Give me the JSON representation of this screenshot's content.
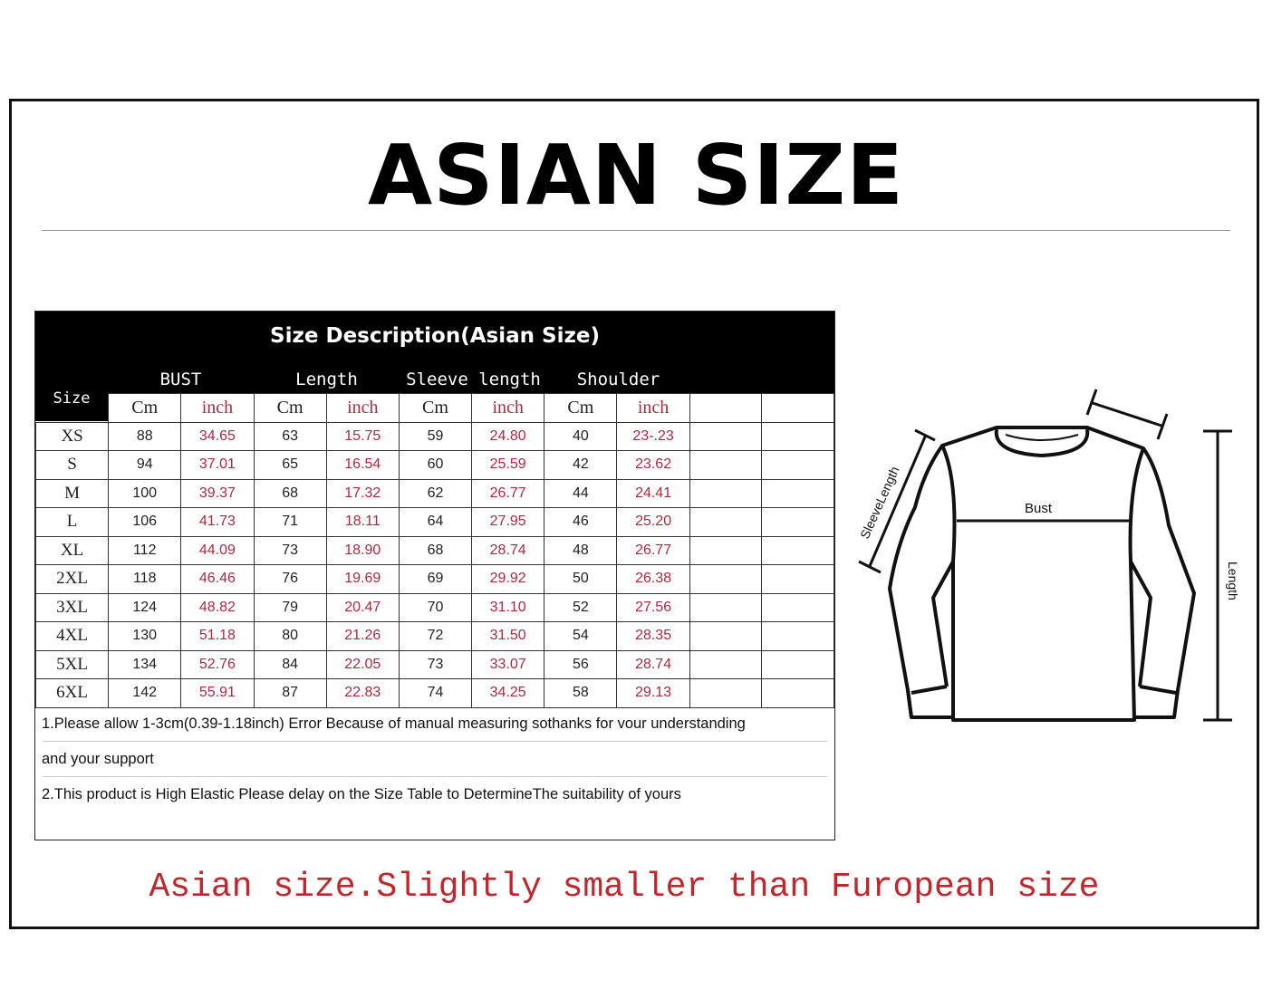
{
  "title": "ASIAN SIZE",
  "table": {
    "caption": "Size Description(Asian Size)",
    "size_header": "Size",
    "groups": [
      "BUST",
      "Length",
      "Sleeve length",
      "Shoulder"
    ],
    "units": [
      "Cm",
      "inch",
      "Cm",
      "inch",
      "Cm",
      "inch",
      "Cm",
      "inch"
    ],
    "rows": [
      [
        "XS",
        "88",
        "34.65",
        "63",
        "15.75",
        "59",
        "24.80",
        "40",
        "23-.23"
      ],
      [
        "S",
        "94",
        "37.01",
        "65",
        "16.54",
        "60",
        "25.59",
        "42",
        "23.62"
      ],
      [
        "M",
        "100",
        "39.37",
        "68",
        "17.32",
        "62",
        "26.77",
        "44",
        "24.41"
      ],
      [
        "L",
        "106",
        "41.73",
        "71",
        "18.11",
        "64",
        "27.95",
        "46",
        "25.20"
      ],
      [
        "XL",
        "112",
        "44.09",
        "73",
        "18.90",
        "68",
        "28.74",
        "48",
        "26.77"
      ],
      [
        "2XL",
        "118",
        "46.46",
        "76",
        "19.69",
        "69",
        "29.92",
        "50",
        "26.38"
      ],
      [
        "3XL",
        "124",
        "48.82",
        "79",
        "20.47",
        "70",
        "31.10",
        "52",
        "27.56"
      ],
      [
        "4XL",
        "130",
        "51.18",
        "80",
        "21.26",
        "72",
        "31.50",
        "54",
        "28.35"
      ],
      [
        "5XL",
        "134",
        "52.76",
        "84",
        "22.05",
        "73",
        "33.07",
        "56",
        "28.74"
      ],
      [
        "6XL",
        "142",
        "55.91",
        "87",
        "22.83",
        "74",
        "34.25",
        "58",
        "29.13"
      ]
    ],
    "notes": [
      "1.Please allow 1-3cm(0.39-1.18inch) Error Because of manual measuring sothanks for vour understanding",
      "and your support",
      "2.This product is High Elastic Please delay on the Size Table to DetermineThe suitability of yours"
    ]
  },
  "diagram": {
    "sleeve_label": "SleeveLength",
    "bust_label": "Bust",
    "length_label": "Length"
  },
  "footer": "Asian size.Slightly smaller than Furopean size",
  "colors": {
    "inch": "#b0293e",
    "footer": "#c0272d"
  }
}
